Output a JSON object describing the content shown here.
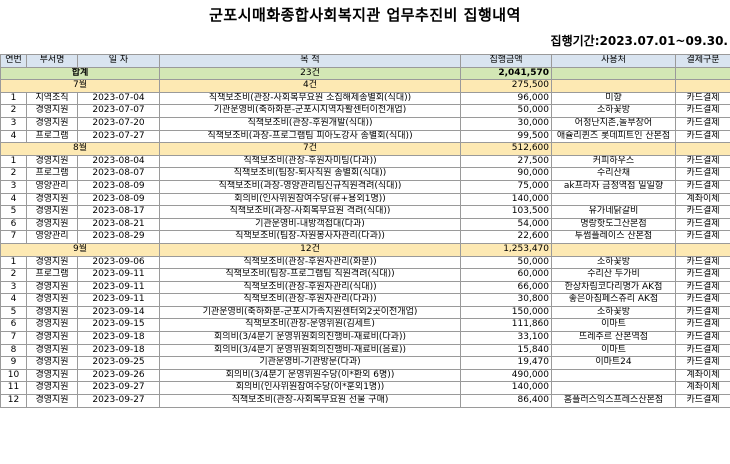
{
  "title": "군포시매화종합사회복지관 업무추진비 집행내역",
  "period": "집행기간:2023.07.01~09.30.",
  "headers": [
    "연번",
    "부서명",
    "일 자",
    "목 적",
    "집행금액",
    "사용처",
    "결제구분"
  ],
  "total": {
    "label": "합계",
    "count": "23건",
    "amount": "2,041,570"
  },
  "groups": [
    {
      "month": "7월",
      "count": "4건",
      "amount": "275,500",
      "rows": [
        [
          "1",
          "지역조직",
          "2023-07-04",
          "직책보조비(관장-사회복무요원 소집해제송별회(식대))",
          "96,000",
          "미향",
          "카드결제"
        ],
        [
          "2",
          "경영지원",
          "2023-07-07",
          "기관운영비(축하화분-군포시지역자활센터이전개업)",
          "50,000",
          "소하꽃방",
          "카드결제"
        ],
        [
          "3",
          "경영지원",
          "2023-07-20",
          "직책보조비(관장-후원개발(식대))",
          "30,000",
          "어정난지촌,놀부장어",
          "카드결제"
        ],
        [
          "4",
          "프로그램",
          "2023-07-27",
          "직책보조비(과장-프로그램팀 피아노강사 송별회(식대))",
          "99,500",
          "애슐리퀸즈 롯데피트인 산본점",
          "카드결제"
        ]
      ]
    },
    {
      "month": "8월",
      "count": "7건",
      "amount": "512,600",
      "rows": [
        [
          "1",
          "경영지원",
          "2023-08-04",
          "직책보조비(관장-후원자미팅(다과))",
          "27,500",
          "커피하우스",
          "카드결제"
        ],
        [
          "2",
          "프로그램",
          "2023-08-07",
          "직책보조비(팀장-퇴사직원 송별회(식대))",
          "90,000",
          "수리산채",
          "카드결제"
        ],
        [
          "3",
          "영양관리",
          "2023-08-09",
          "직책보조비(과장-영양관리팀신규직원격려(식대))",
          "75,000",
          "ak프라자 금정역점 일일향",
          "카드결제"
        ],
        [
          "4",
          "경영지원",
          "2023-08-09",
          "회의비(인사위원참여수당(류+용외1명))",
          "140,000",
          "",
          "계좌이체"
        ],
        [
          "5",
          "경영지원",
          "2023-08-17",
          "직책보조비(과장-사회복무요원 격려(식대))",
          "103,500",
          "유가네닭갈비",
          "카드결제"
        ],
        [
          "6",
          "경영지원",
          "2023-08-21",
          "기관운영비-내방객접대(다과)",
          "54,000",
          "명랑핫도그산본점",
          "카드결제"
        ],
        [
          "7",
          "영양관리",
          "2023-08-29",
          "직책보조비(팀장-자원봉사자관리(다과))",
          "22,600",
          "투썸플레이스 산본점",
          "카드결제"
        ]
      ]
    },
    {
      "month": "9월",
      "count": "12건",
      "amount": "1,253,470",
      "rows": [
        [
          "1",
          "경영지원",
          "2023-09-06",
          "직책보조비(관장-후원자관리(화분))",
          "50,000",
          "소하꽃방",
          "카드결제"
        ],
        [
          "2",
          "프로그램",
          "2023-09-11",
          "직책보조비(팀장-프로그램팀 직원격려(식대))",
          "60,000",
          "수리산 두가비",
          "카드결제"
        ],
        [
          "3",
          "경영지원",
          "2023-09-11",
          "직책보조비(관장-후원자관리(식대))",
          "66,000",
          "한상차림코다리명가 AK점",
          "카드결제"
        ],
        [
          "4",
          "경영지원",
          "2023-09-11",
          "직책보조비(관장-후원자관리(다과))",
          "30,800",
          "좋은아침페스츄리 AK점",
          "카드결제"
        ],
        [
          "5",
          "경영지원",
          "2023-09-14",
          "기관운영비(축하화분-군포시가족지원센터외2곳이전개업)",
          "150,000",
          "소하꽃방",
          "카드결제"
        ],
        [
          "6",
          "경영지원",
          "2023-09-15",
          "직책보조비(관장-운영위원(김세트)",
          "111,860",
          "이마트",
          "카드결제"
        ],
        [
          "7",
          "경영지원",
          "2023-09-18",
          "회의비(3/4분기 운영위원회의진행비-재료비(다과))",
          "33,100",
          "뜨레주르 산본역점",
          "카드결제"
        ],
        [
          "8",
          "경영지원",
          "2023-09-18",
          "회의비(3/4분기 운영위원회의진행비-재료비(음료))",
          "15,840",
          "이마트",
          "카드결제"
        ],
        [
          "9",
          "경영지원",
          "2023-09-25",
          "기관운영비-기관방문(다과)",
          "19,470",
          "이마트24",
          "카드결제"
        ],
        [
          "10",
          "경영지원",
          "2023-09-26",
          "회의비(3/4분기 운영위원수당(이*환외 6명))",
          "490,000",
          "",
          "계좌이체"
        ],
        [
          "11",
          "경영지원",
          "2023-09-27",
          "회의비(인사위원참여수당(이*훈외1명))",
          "140,000",
          "",
          "계좌이체"
        ],
        [
          "12",
          "경영지원",
          "2023-09-27",
          "직책보조비(관장-사회복무요원 선물 구매)",
          "86,400",
          "홈플러스익스프레스산본점",
          "카드결제"
        ]
      ]
    }
  ]
}
